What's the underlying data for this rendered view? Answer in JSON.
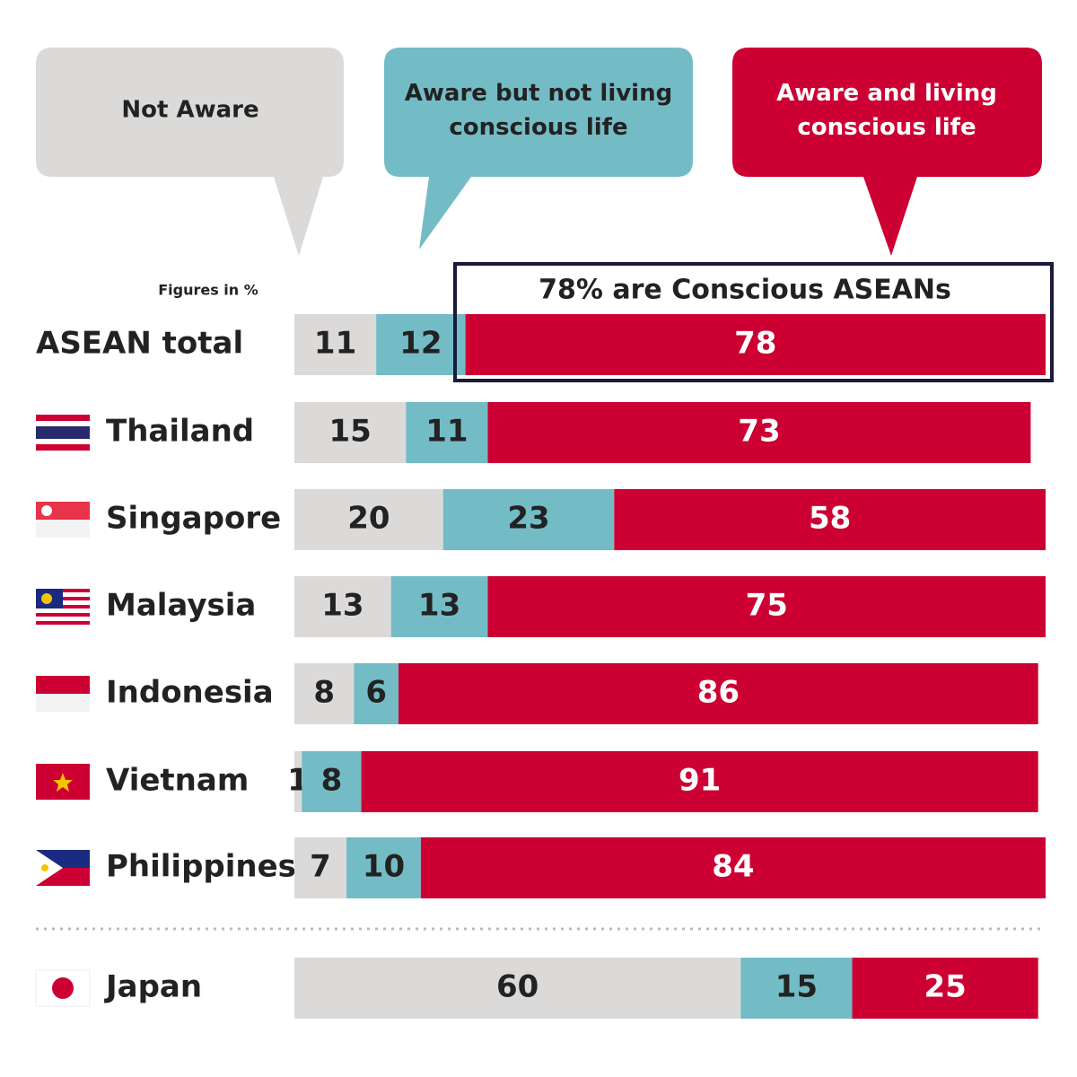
{
  "chart_data": {
    "type": "stacked-bar",
    "annotations": {
      "unit_note": "Figures in %",
      "highlight": "78% are Conscious ASEANs"
    },
    "categories": [
      "ASEAN total",
      "Thailand",
      "Singapore",
      "Malaysia",
      "Indonesia",
      "Vietnam",
      "Philippines",
      "Japan"
    ],
    "series": [
      {
        "name": "Not Aware",
        "color": "#dcdad9",
        "values": [
          11,
          15,
          20,
          13,
          8,
          1,
          7,
          60
        ]
      },
      {
        "name": "Aware but not living conscious life",
        "color": "#74bcc5",
        "values": [
          12,
          11,
          23,
          13,
          6,
          8,
          10,
          15
        ]
      },
      {
        "name": "Aware and living conscious life",
        "color": "#cc0033",
        "values": [
          78,
          73,
          58,
          75,
          86,
          91,
          84,
          25
        ]
      }
    ]
  }
}
